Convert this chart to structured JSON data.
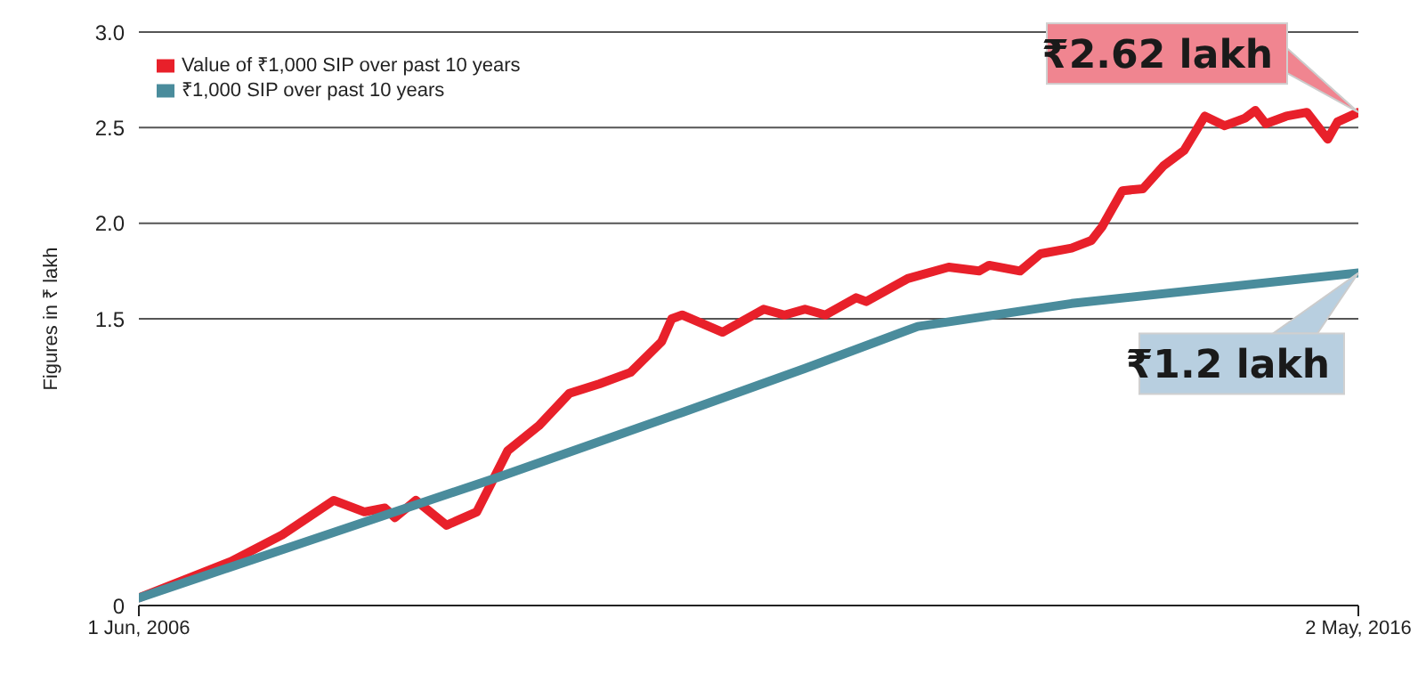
{
  "chart_data": {
    "type": "line",
    "ylabel": "Figures in ₹ lakh",
    "xlim": [
      "2006-06-01",
      "2016-05-02"
    ],
    "xticks": [
      {
        "value": "2006-06-01",
        "label": "1 Jun, 2006"
      },
      {
        "value": "2016-05-02",
        "label": "2 May, 2016"
      }
    ],
    "ylim": [
      0,
      3
    ],
    "yticks": [
      0,
      1.5,
      {
        "value": 2,
        "label": "2.0"
      },
      2.5,
      {
        "value": 3,
        "label": "3.0"
      }
    ],
    "grid": "y",
    "legend": "top left",
    "marker": "none",
    "line_style": "solid",
    "series": [
      {
        "name": "Value of ₹1,000 SIP over past 10 years",
        "color": "#e8202a",
        "x": [
          "2006-06-01",
          "2007-03",
          "2007-08",
          "2008-01",
          "2008-04",
          "2008-06",
          "2008-07",
          "2008-09",
          "2008-12",
          "2009-03",
          "2009-06",
          "2009-09",
          "2009-12",
          "2010-03",
          "2010-06",
          "2010-09",
          "2010-10",
          "2010-11",
          "2011-03",
          "2011-07",
          "2011-09",
          "2011-11",
          "2012-01",
          "2012-04",
          "2012-05",
          "2012-09",
          "2013-01",
          "2013-04",
          "2013-05",
          "2013-08",
          "2013-10",
          "2014-01",
          "2014-03",
          "2014-04",
          "2014-06",
          "2014-08",
          "2014-10",
          "2014-12",
          "2015-02",
          "2015-04",
          "2015-06",
          "2015-07",
          "2015-08",
          "2015-10",
          "2015-12",
          "2016-02",
          "2016-03",
          "2016-05-02"
        ],
        "values": [
          0.04,
          0.23,
          0.37,
          0.55,
          0.49,
          0.51,
          0.46,
          0.55,
          0.42,
          0.49,
          0.81,
          0.94,
          1.11,
          1.16,
          1.22,
          1.38,
          1.5,
          1.52,
          1.43,
          1.55,
          1.52,
          1.55,
          1.52,
          1.61,
          1.59,
          1.71,
          1.77,
          1.75,
          1.78,
          1.75,
          1.84,
          1.87,
          1.91,
          1.98,
          2.17,
          2.18,
          2.3,
          2.38,
          2.56,
          2.51,
          2.55,
          2.59,
          2.52,
          2.56,
          2.58,
          2.44,
          2.53,
          2.58
        ]
      },
      {
        "name": "₹1,000 SIP over past 10 years",
        "color": "#4a8c9c",
        "x": [
          "2006-06-01",
          "2009-05",
          "2010-11",
          "2011-11",
          "2012-10",
          "2014-01",
          "2016-05-02"
        ],
        "values": [
          0.04,
          0.67,
          1.01,
          1.24,
          1.46,
          1.58,
          1.74
        ]
      }
    ],
    "annotations": [
      {
        "text": "₹2.62 lakh",
        "x": "2016-05-02",
        "y": 2.58
      },
      {
        "text": "₹1.2 lakh",
        "x": "2016-05-02",
        "y": 1.74
      }
    ]
  }
}
